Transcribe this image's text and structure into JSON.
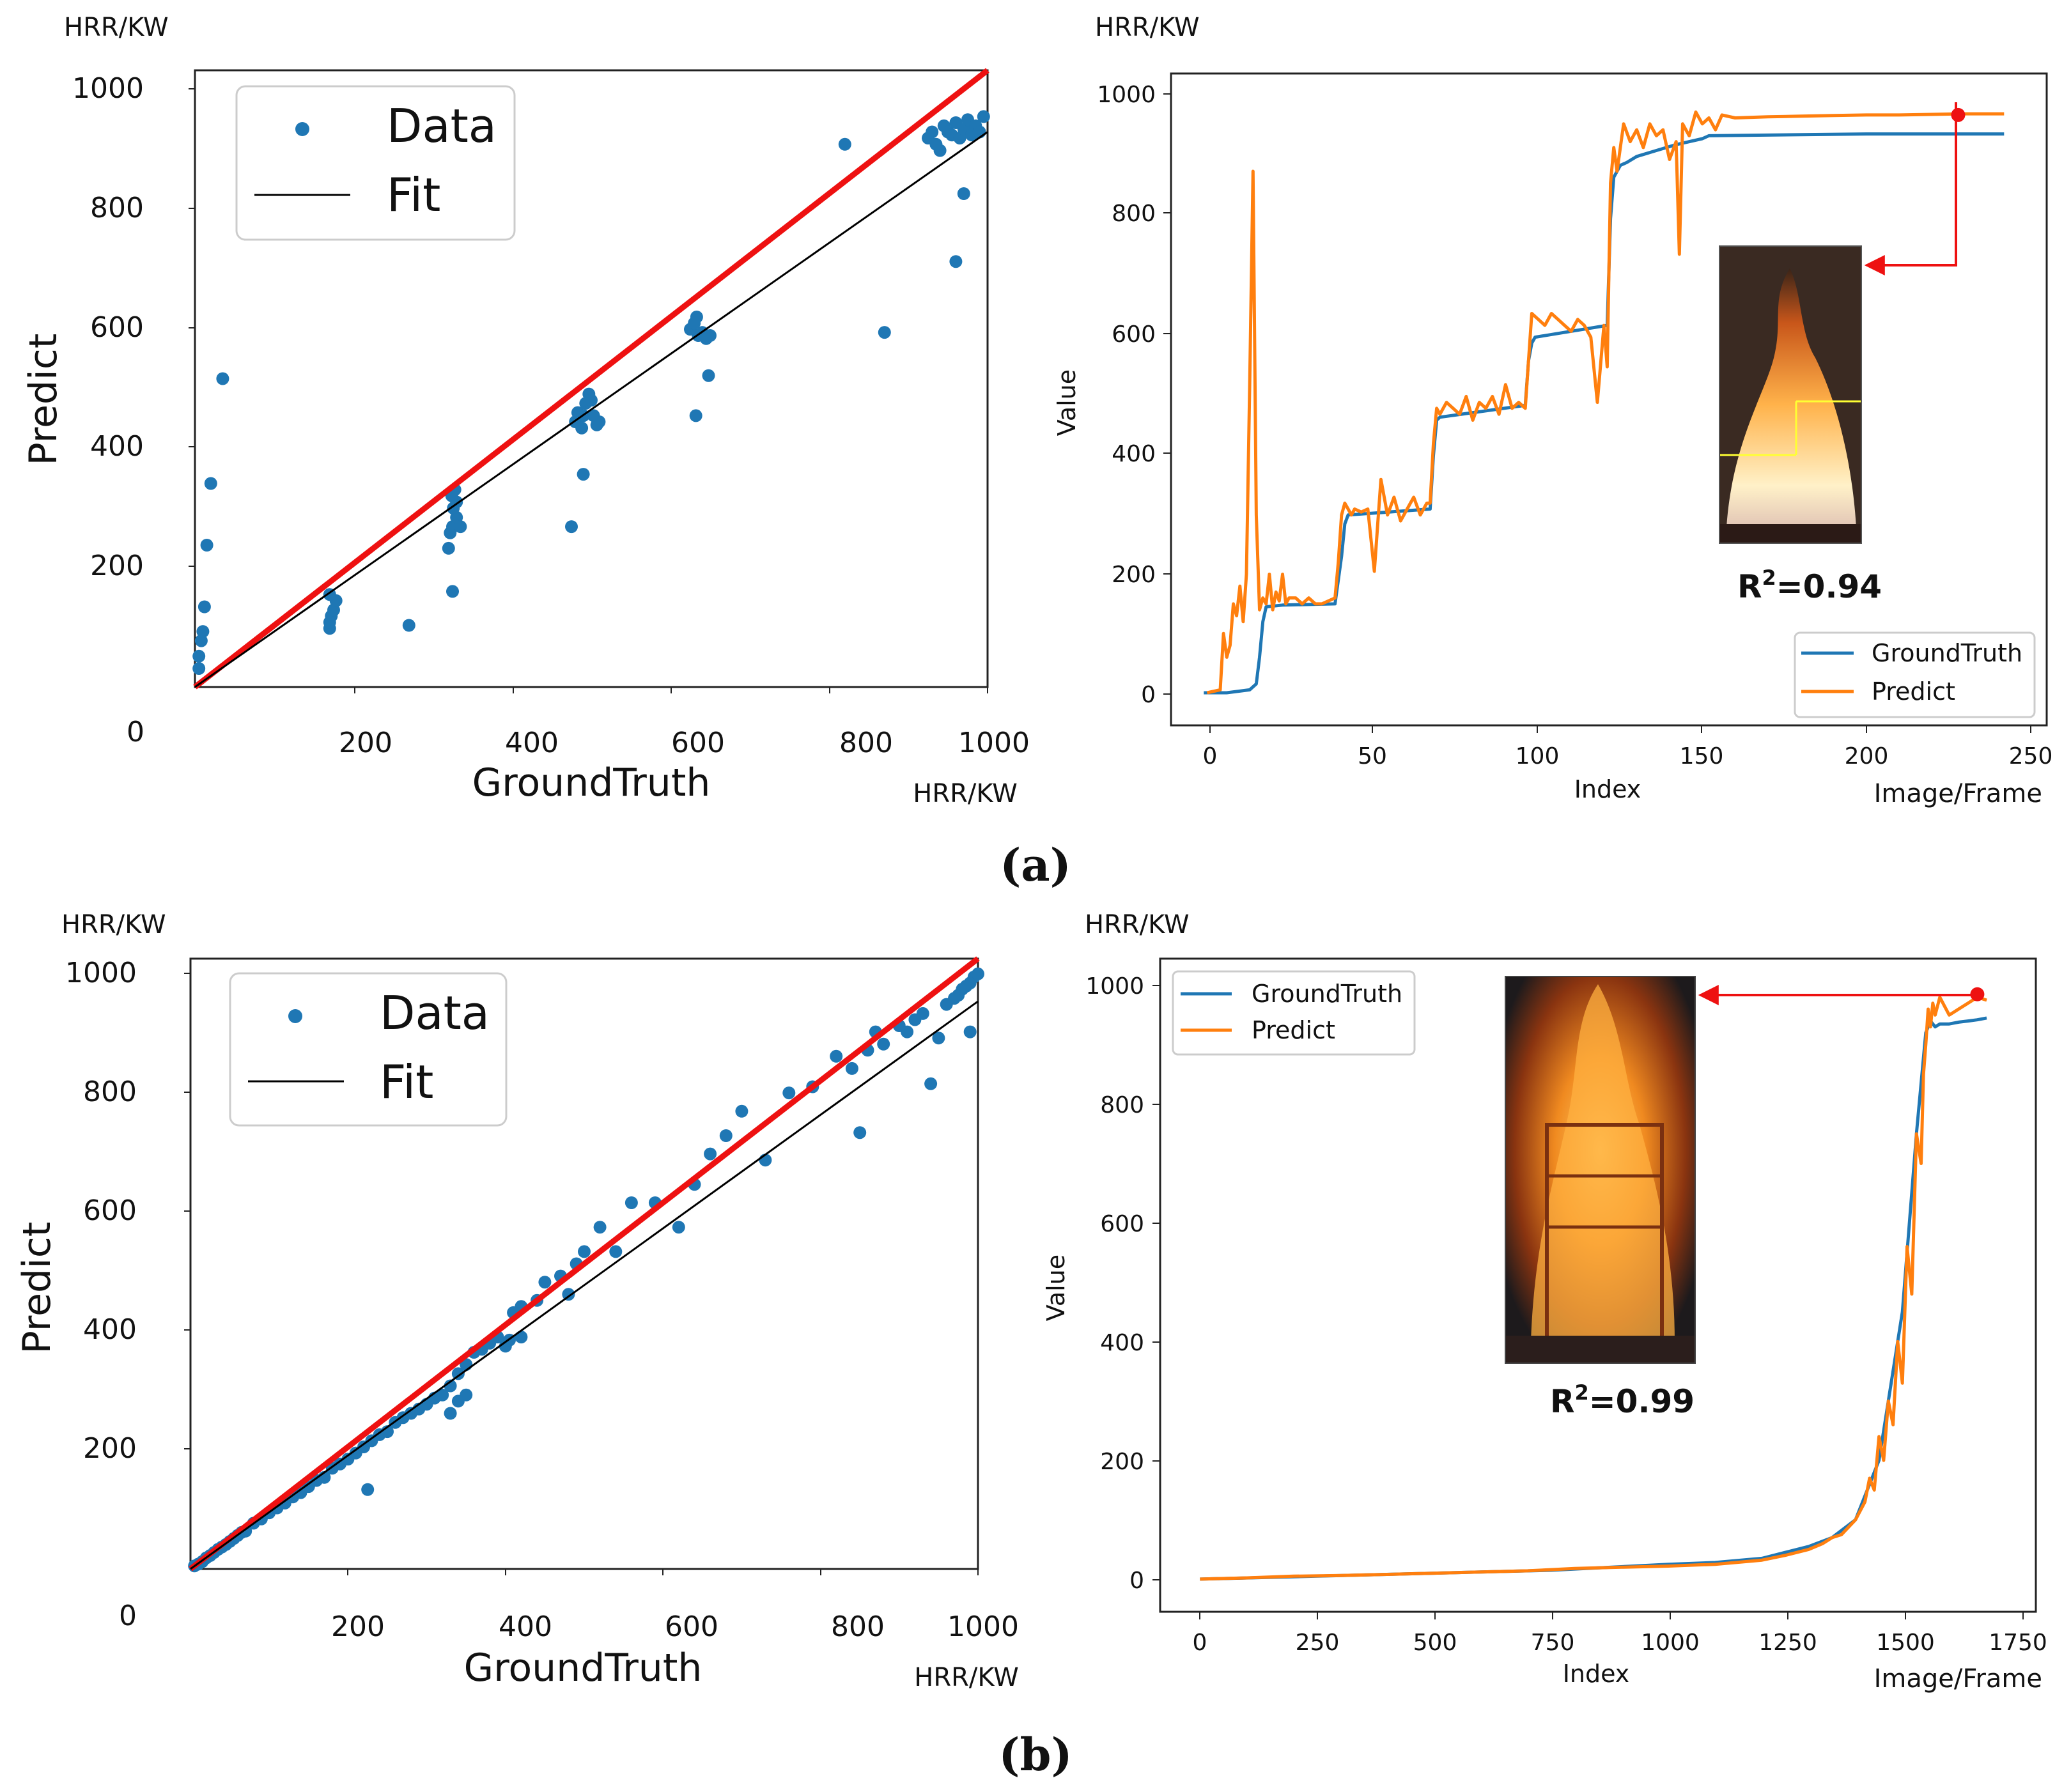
{
  "colors": {
    "data": "#1f77b4",
    "ideal": "#ee1111",
    "fit": "#000000",
    "groundtruth": "#1f77b4",
    "predict": "#ff7f0e",
    "marker": "#ee1111"
  },
  "panels": [
    {
      "caption": "(a)",
      "scatter": {
        "unit_y": "HRR/KW",
        "unit_x": "HRR/KW",
        "xlabel": "GroundTruth",
        "ylabel": "Predict",
        "legend": [
          "Data",
          "Fit"
        ],
        "origin_label": "0",
        "xticks": [
          "200",
          "400",
          "600",
          "800",
          "1000"
        ],
        "yticks": [
          "200",
          "400",
          "600",
          "800",
          "1000"
        ]
      },
      "line": {
        "unit_y": "HRR/KW",
        "unit_x": "Image/Frame",
        "xlabel": "Index",
        "ylabel": "Value",
        "legend": [
          "GroundTruth",
          "Predict"
        ],
        "xticks": [
          "0",
          "50",
          "100",
          "150",
          "200",
          "250"
        ],
        "yticks": [
          "0",
          "200",
          "400",
          "600",
          "800",
          "1000"
        ],
        "r2_prefix": "R",
        "r2_sup": "2",
        "r2_value": "=0.94"
      }
    },
    {
      "caption": "(b)",
      "scatter": {
        "unit_y": "HRR/KW",
        "unit_x": "HRR/KW",
        "xlabel": "GroundTruth",
        "ylabel": "Predict",
        "legend": [
          "Data",
          "Fit"
        ],
        "origin_label": "0",
        "xticks": [
          "200",
          "400",
          "600",
          "800",
          "1000"
        ],
        "yticks": [
          "200",
          "400",
          "600",
          "800",
          "1000"
        ]
      },
      "line": {
        "unit_y": "HRR/KW",
        "unit_x": "Image/Frame",
        "xlabel": "Index",
        "ylabel": "Value",
        "legend": [
          "GroundTruth",
          "Predict"
        ],
        "xticks": [
          "0",
          "250",
          "500",
          "750",
          "1000",
          "1250",
          "1500",
          "1750"
        ],
        "yticks": [
          "0",
          "200",
          "400",
          "600",
          "800",
          "1000"
        ],
        "r2_prefix": "R",
        "r2_sup": "2",
        "r2_value": "=0.99"
      }
    }
  ],
  "chart_data": [
    {
      "type": "scatter",
      "panel": "a-left",
      "xlabel": "GroundTruth",
      "ylabel": "Predict",
      "xlim": [
        0,
        1000
      ],
      "ylim": [
        0,
        1000
      ],
      "ideal_line": {
        "slope": 1.0,
        "intercept": 0
      },
      "fit_line": {
        "slope": 0.9,
        "intercept": 0
      },
      "points": [
        [
          5,
          30
        ],
        [
          5,
          50
        ],
        [
          8,
          75
        ],
        [
          10,
          90
        ],
        [
          12,
          130
        ],
        [
          15,
          230
        ],
        [
          20,
          330
        ],
        [
          35,
          500
        ],
        [
          170,
          95
        ],
        [
          170,
          105
        ],
        [
          172,
          115
        ],
        [
          175,
          125
        ],
        [
          178,
          140
        ],
        [
          170,
          150
        ],
        [
          270,
          100
        ],
        [
          320,
          225
        ],
        [
          322,
          250
        ],
        [
          325,
          260
        ],
        [
          330,
          275
        ],
        [
          326,
          290
        ],
        [
          330,
          300
        ],
        [
          324,
          310
        ],
        [
          328,
          320
        ],
        [
          325,
          155
        ],
        [
          335,
          260
        ],
        [
          475,
          260
        ],
        [
          480,
          430
        ],
        [
          483,
          445
        ],
        [
          488,
          420
        ],
        [
          490,
          440
        ],
        [
          493,
          460
        ],
        [
          497,
          475
        ],
        [
          500,
          465
        ],
        [
          503,
          440
        ],
        [
          507,
          425
        ],
        [
          510,
          430
        ],
        [
          490,
          345
        ],
        [
          625,
          580
        ],
        [
          630,
          590
        ],
        [
          633,
          600
        ],
        [
          635,
          570
        ],
        [
          640,
          575
        ],
        [
          645,
          565
        ],
        [
          650,
          570
        ],
        [
          632,
          440
        ],
        [
          648,
          505
        ],
        [
          820,
          880
        ],
        [
          870,
          575
        ],
        [
          925,
          890
        ],
        [
          930,
          900
        ],
        [
          935,
          880
        ],
        [
          940,
          870
        ],
        [
          945,
          910
        ],
        [
          950,
          900
        ],
        [
          955,
          895
        ],
        [
          960,
          915
        ],
        [
          965,
          890
        ],
        [
          970,
          905
        ],
        [
          975,
          920
        ],
        [
          980,
          895
        ],
        [
          985,
          910
        ],
        [
          990,
          900
        ],
        [
          995,
          925
        ],
        [
          960,
          690
        ],
        [
          970,
          800
        ]
      ]
    },
    {
      "type": "line",
      "panel": "a-right",
      "xlabel": "Index",
      "ylabel": "Value",
      "xlim": [
        -12,
        255
      ],
      "ylim": [
        -55,
        1045
      ],
      "series": [
        {
          "name": "GroundTruth",
          "x": [
            -2,
            5,
            12,
            14,
            15,
            16,
            17,
            22,
            38,
            40,
            41,
            42,
            67,
            68,
            69,
            70,
            96,
            97,
            98,
            99,
            121,
            122,
            123,
            125,
            127,
            130,
            136,
            142,
            150,
            152,
            200,
            242
          ],
          "y": [
            0,
            0,
            5,
            15,
            60,
            120,
            145,
            148,
            150,
            230,
            285,
            300,
            310,
            400,
            460,
            465,
            485,
            560,
            590,
            600,
            620,
            800,
            870,
            890,
            895,
            905,
            915,
            925,
            935,
            940,
            943,
            943
          ]
        },
        {
          "name": "Predict",
          "x": [
            -1,
            3,
            4,
            5,
            6,
            7,
            8,
            9,
            10,
            11,
            12,
            13,
            14,
            15,
            16,
            17,
            18,
            19,
            20,
            21,
            22,
            23,
            24,
            26,
            28,
            30,
            32,
            34,
            36,
            38,
            39,
            40,
            41,
            42,
            43,
            44,
            46,
            48,
            50,
            52,
            54,
            56,
            58,
            60,
            62,
            64,
            66,
            67,
            68,
            69,
            70,
            72,
            74,
            76,
            78,
            80,
            82,
            84,
            86,
            88,
            90,
            92,
            94,
            96,
            97,
            98,
            100,
            102,
            104,
            106,
            108,
            110,
            112,
            114,
            116,
            118,
            120,
            121,
            122,
            123,
            124,
            126,
            128,
            130,
            132,
            134,
            136,
            138,
            140,
            142,
            143,
            144,
            146,
            148,
            150,
            152,
            154,
            156,
            160,
            170,
            180,
            190,
            200,
            210,
            220,
            230,
            242
          ],
          "y": [
            0,
            5,
            100,
            60,
            80,
            150,
            130,
            180,
            120,
            200,
            520,
            880,
            300,
            140,
            160,
            150,
            200,
            140,
            170,
            155,
            200,
            150,
            160,
            160,
            150,
            160,
            150,
            150,
            155,
            160,
            220,
            300,
            320,
            310,
            300,
            310,
            305,
            310,
            205,
            360,
            300,
            330,
            290,
            310,
            330,
            300,
            320,
            320,
            420,
            480,
            470,
            490,
            480,
            470,
            500,
            460,
            490,
            480,
            500,
            470,
            520,
            480,
            490,
            480,
            560,
            640,
            630,
            620,
            640,
            630,
            620,
            610,
            630,
            620,
            600,
            490,
            620,
            550,
            860,
            920,
            880,
            960,
            930,
            950,
            920,
            960,
            940,
            950,
            900,
            930,
            740,
            960,
            940,
            980,
            960,
            970,
            950,
            975,
            970,
            972,
            973,
            974,
            975,
            975,
            976,
            977,
            977
          ]
        }
      ],
      "marker": {
        "x": 228,
        "y": 975
      }
    },
    {
      "type": "scatter",
      "panel": "b-left",
      "xlabel": "GroundTruth",
      "ylabel": "Predict",
      "xlim": [
        0,
        1000
      ],
      "ylim": [
        0,
        1000
      ],
      "ideal_line": {
        "slope": 1.0,
        "intercept": 0
      },
      "fit_line": {
        "slope": 0.93,
        "intercept": 0
      },
      "points": [
        [
          5,
          5
        ],
        [
          10,
          8
        ],
        [
          15,
          12
        ],
        [
          20,
          18
        ],
        [
          25,
          22
        ],
        [
          30,
          27
        ],
        [
          35,
          32
        ],
        [
          40,
          36
        ],
        [
          45,
          40
        ],
        [
          50,
          45
        ],
        [
          55,
          50
        ],
        [
          60,
          55
        ],
        [
          65,
          60
        ],
        [
          70,
          62
        ],
        [
          80,
          75
        ],
        [
          90,
          82
        ],
        [
          100,
          92
        ],
        [
          110,
          100
        ],
        [
          120,
          108
        ],
        [
          130,
          118
        ],
        [
          140,
          125
        ],
        [
          150,
          135
        ],
        [
          160,
          145
        ],
        [
          170,
          150
        ],
        [
          180,
          165
        ],
        [
          190,
          172
        ],
        [
          200,
          180
        ],
        [
          210,
          190
        ],
        [
          220,
          200
        ],
        [
          230,
          210
        ],
        [
          240,
          220
        ],
        [
          250,
          225
        ],
        [
          260,
          240
        ],
        [
          270,
          248
        ],
        [
          280,
          255
        ],
        [
          290,
          262
        ],
        [
          300,
          270
        ],
        [
          310,
          280
        ],
        [
          320,
          285
        ],
        [
          330,
          300
        ],
        [
          340,
          320
        ],
        [
          350,
          335
        ],
        [
          360,
          355
        ],
        [
          370,
          360
        ],
        [
          380,
          370
        ],
        [
          390,
          380
        ],
        [
          400,
          365
        ],
        [
          410,
          420
        ],
        [
          420,
          430
        ],
        [
          440,
          440
        ],
        [
          450,
          470
        ],
        [
          470,
          480
        ],
        [
          480,
          450
        ],
        [
          490,
          500
        ],
        [
          500,
          520
        ],
        [
          520,
          560
        ],
        [
          540,
          520
        ],
        [
          560,
          600
        ],
        [
          590,
          600
        ],
        [
          620,
          560
        ],
        [
          640,
          630
        ],
        [
          660,
          680
        ],
        [
          680,
          710
        ],
        [
          700,
          750
        ],
        [
          730,
          670
        ],
        [
          760,
          780
        ],
        [
          790,
          790
        ],
        [
          820,
          840
        ],
        [
          840,
          820
        ],
        [
          850,
          715
        ],
        [
          860,
          850
        ],
        [
          870,
          880
        ],
        [
          880,
          860
        ],
        [
          900,
          890
        ],
        [
          910,
          880
        ],
        [
          920,
          900
        ],
        [
          930,
          910
        ],
        [
          940,
          795
        ],
        [
          950,
          870
        ],
        [
          960,
          925
        ],
        [
          970,
          935
        ],
        [
          975,
          940
        ],
        [
          980,
          950
        ],
        [
          985,
          955
        ],
        [
          990,
          960
        ],
        [
          995,
          970
        ],
        [
          1000,
          975
        ],
        [
          990,
          880
        ],
        [
          225,
          130
        ],
        [
          330,
          255
        ],
        [
          340,
          275
        ],
        [
          350,
          285
        ],
        [
          405,
          375
        ],
        [
          420,
          380
        ]
      ]
    },
    {
      "type": "line",
      "panel": "b-right",
      "xlabel": "Index",
      "ylabel": "Value",
      "xlim": [
        -85,
        1785
      ],
      "ylim": [
        -55,
        1045
      ],
      "series": [
        {
          "name": "GroundTruth",
          "x": [
            0,
            250,
            500,
            750,
            1000,
            1100,
            1200,
            1250,
            1300,
            1350,
            1400,
            1450,
            1500,
            1530,
            1550,
            1560,
            1570,
            1580,
            1600,
            1620,
            1640,
            1660,
            1680
          ],
          "y": [
            0,
            5,
            10,
            15,
            25,
            28,
            35,
            45,
            55,
            70,
            100,
            200,
            450,
            750,
            920,
            940,
            930,
            935,
            935,
            938,
            940,
            942,
            945
          ]
        },
        {
          "name": "Predict",
          "x": [
            0,
            100,
            200,
            300,
            400,
            500,
            600,
            700,
            800,
            900,
            1000,
            1100,
            1200,
            1250,
            1300,
            1330,
            1350,
            1370,
            1400,
            1420,
            1430,
            1440,
            1450,
            1460,
            1470,
            1480,
            1490,
            1500,
            1510,
            1520,
            1530,
            1540,
            1545,
            1550,
            1555,
            1560,
            1565,
            1570,
            1580,
            1600,
            1620,
            1640,
            1660,
            1680
          ],
          "y": [
            0,
            2,
            5,
            6,
            8,
            10,
            12,
            14,
            18,
            20,
            22,
            25,
            32,
            40,
            50,
            60,
            70,
            75,
            100,
            130,
            170,
            150,
            240,
            200,
            300,
            260,
            400,
            330,
            560,
            480,
            750,
            700,
            850,
            900,
            960,
            930,
            970,
            950,
            980,
            950,
            960,
            970,
            980,
            975
          ]
        }
      ],
      "marker": {
        "x": 1660,
        "y": 985
      }
    }
  ]
}
